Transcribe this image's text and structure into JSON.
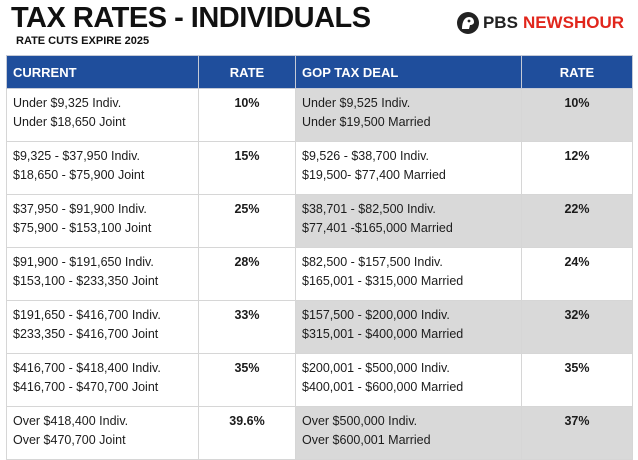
{
  "header": {
    "title": "TAX RATES - INDIVIDUALS",
    "subtitle": "RATE CUTS EXPIRE 2025",
    "logo": {
      "brand": "PBS",
      "show": "NEWSHOUR",
      "icon": "pbs-head-logo-icon",
      "brand_color": "#222222",
      "show_color": "#e1261c"
    }
  },
  "table": {
    "columns": {
      "current": "CURRENT",
      "current_rate": "RATE",
      "gop": "GOP TAX DEAL",
      "gop_rate": "RATE"
    },
    "header_color": "#1f4e9c",
    "shade_color": "#d9d9d9",
    "rows": [
      {
        "current": [
          "Under $9,325 Indiv.",
          "Under $18,650 Joint"
        ],
        "current_rate": "10%",
        "gop": [
          "Under $9,525 Indiv.",
          "Under $19,500 Married"
        ],
        "gop_rate": "10%",
        "shaded": true
      },
      {
        "current": [
          "$9,325 - $37,950 Indiv.",
          "$18,650 - $75,900 Joint"
        ],
        "current_rate": "15%",
        "gop": [
          "$9,526 - $38,700 Indiv.",
          "$19,500- $77,400 Married"
        ],
        "gop_rate": "12%",
        "shaded": false
      },
      {
        "current": [
          "$37,950 - $91,900 Indiv.",
          "$75,900 - $153,100 Joint"
        ],
        "current_rate": "25%",
        "gop": [
          "$38,701 - $82,500  Indiv.",
          "$77,401 -$165,000 Married"
        ],
        "gop_rate": "22%",
        "shaded": true
      },
      {
        "current": [
          "$91,900 - $191,650 Indiv.",
          "$153,100 - $233,350 Joint"
        ],
        "current_rate": "28%",
        "gop": [
          "$82,500 - $157,500 Indiv.",
          "$165,001 - $315,000  Married"
        ],
        "gop_rate": "24%",
        "shaded": false
      },
      {
        "current": [
          "$191,650 - $416,700 Indiv.",
          "$233,350 - $416,700 Joint"
        ],
        "current_rate": "33%",
        "gop": [
          "$157,500 - $200,000 Indiv.",
          "$315,001 - $400,000 Married"
        ],
        "gop_rate": "32%",
        "shaded": true
      },
      {
        "current": [
          "$416,700 - $418,400 Indiv.",
          " $416,700 - $470,700 Joint"
        ],
        "current_rate": "35%",
        "gop": [
          "$200,001 - $500,000 Indiv.",
          "$400,001 - $600,000  Married"
        ],
        "gop_rate": "35%",
        "shaded": false
      },
      {
        "current": [
          "Over $418,400 Indiv.",
          "Over $470,700 Joint"
        ],
        "current_rate": "39.6%",
        "gop": [
          "Over $500,000 Indiv.",
          "Over $600,001 Married"
        ],
        "gop_rate": "37%",
        "shaded": true
      }
    ]
  }
}
